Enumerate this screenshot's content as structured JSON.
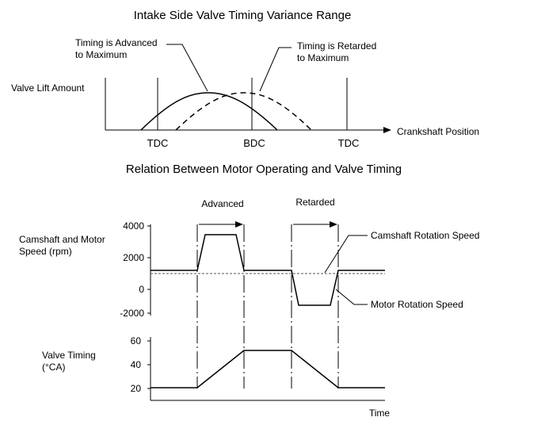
{
  "diagram_top": {
    "title": "Intake Side Valve Timing Variance Range",
    "y_label": "Valve Lift Amount",
    "x_label": "Crankshaft Position",
    "ticks": [
      "TDC",
      "BDC",
      "TDC"
    ],
    "callout_advanced": [
      "Timing is Advanced",
      "to Maximum"
    ],
    "callout_retarded": [
      "Timing is Retarded",
      "to Maximum"
    ]
  },
  "diagram_bottom": {
    "title": "Relation Between Motor Operating and Valve Timing",
    "phase_labels": [
      "Advanced",
      "Retarded"
    ],
    "speed_label": [
      "Camshaft and Motor",
      "Speed (rpm)"
    ],
    "speed_ticks": [
      "4000",
      "2000",
      "0",
      "-2000"
    ],
    "camshaft_label": "Camshaft Rotation Speed",
    "motor_label": "Motor Rotation Speed",
    "timing_label": [
      "Valve Timing",
      "(°CA)"
    ],
    "timing_ticks": [
      "60",
      "40",
      "20"
    ],
    "time_label": "Time"
  },
  "colors": {
    "line": "#000000",
    "dashed_ref": "#555555"
  }
}
